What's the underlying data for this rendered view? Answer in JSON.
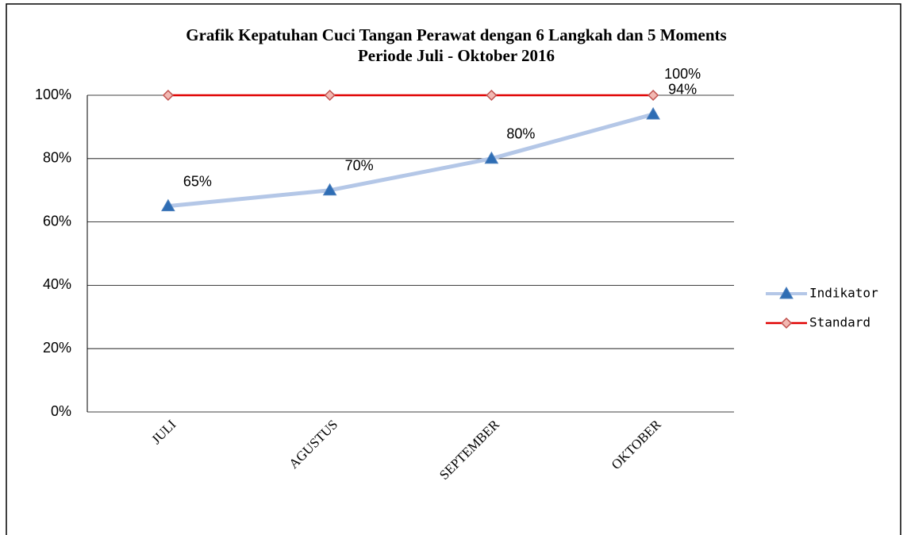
{
  "chart_data": {
    "type": "line",
    "title": "Grafik Kepatuhan Cuci Tangan Perawat dengan 6 Langkah dan 5 Moments",
    "subtitle": "Periode Juli - Oktober 2016",
    "categories": [
      "JULI",
      "AGUSTUS",
      "SEPTEMBER",
      "OKTOBER"
    ],
    "series": [
      {
        "name": "Indikator",
        "color": "#b4c7e7",
        "marker": "triangle",
        "marker_color": "#2e6db4",
        "values": [
          65,
          70,
          80,
          94
        ],
        "value_labels": [
          "65%",
          "70%",
          "80%",
          "94%"
        ]
      },
      {
        "name": "Standard",
        "color": "#e00000",
        "marker": "diamond",
        "marker_color": "#f2b8b2",
        "values": [
          100,
          100,
          100,
          100
        ],
        "value_labels": [
          null,
          null,
          null,
          "100%"
        ]
      }
    ],
    "ylim": [
      0,
      100
    ],
    "yticks": [
      {
        "value": 0,
        "label": "0%"
      },
      {
        "value": 20,
        "label": "20%"
      },
      {
        "value": 40,
        "label": "40%"
      },
      {
        "value": 60,
        "label": "60%"
      },
      {
        "value": 80,
        "label": "80%"
      },
      {
        "value": 100,
        "label": "100%"
      }
    ],
    "grid": true,
    "legend": "right"
  }
}
